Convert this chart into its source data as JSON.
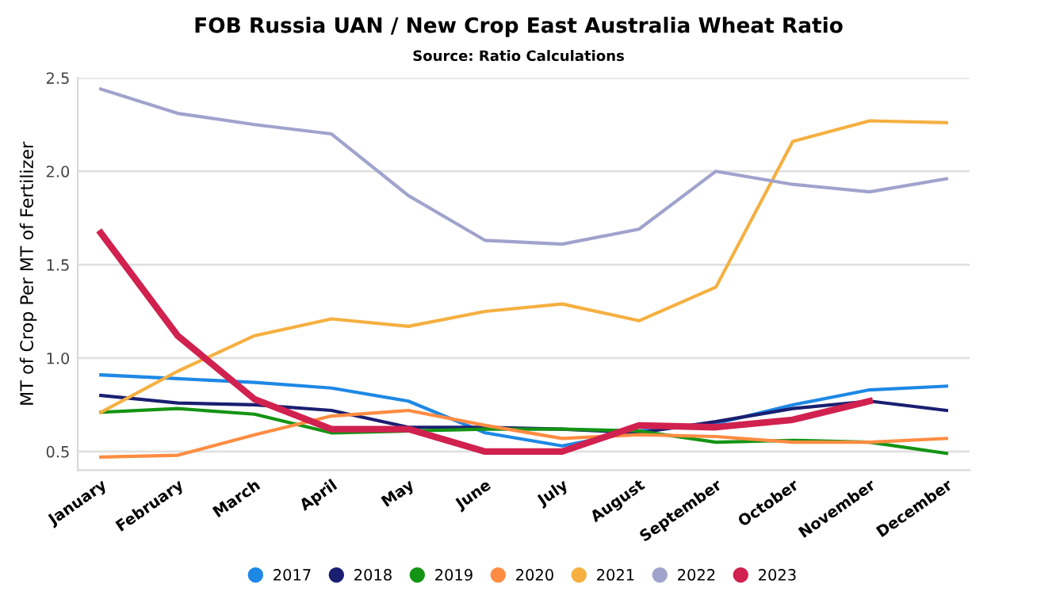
{
  "chart_data": {
    "type": "line",
    "title": "FOB Russia UAN / New Crop East Australia Wheat Ratio",
    "subtitle": "Source: Ratio Calculations",
    "ylabel": "MT of Crop Per MT of Fertilizer",
    "categories": [
      "January",
      "February",
      "March",
      "April",
      "May",
      "June",
      "July",
      "August",
      "September",
      "October",
      "November",
      "December"
    ],
    "series": [
      {
        "name": "2017",
        "color": "#1e88e5",
        "values": [
          0.91,
          0.89,
          0.87,
          0.84,
          0.77,
          0.6,
          0.53,
          0.61,
          0.65,
          0.75,
          0.83,
          0.85
        ]
      },
      {
        "name": "2018",
        "color": "#1a1f71",
        "values": [
          0.8,
          0.76,
          0.75,
          0.72,
          0.63,
          0.63,
          0.62,
          0.6,
          0.66,
          0.73,
          0.77,
          0.72
        ]
      },
      {
        "name": "2019",
        "color": "#149414",
        "values": [
          0.71,
          0.73,
          0.7,
          0.6,
          0.61,
          0.62,
          0.62,
          0.61,
          0.55,
          0.56,
          0.55,
          0.49
        ]
      },
      {
        "name": "2020",
        "color": "#ff8c42",
        "values": [
          0.47,
          0.48,
          0.59,
          0.69,
          0.72,
          0.64,
          0.57,
          0.59,
          0.58,
          0.55,
          0.55,
          0.57
        ]
      },
      {
        "name": "2021",
        "color": "#f5b041",
        "values": [
          0.71,
          0.93,
          1.12,
          1.21,
          1.17,
          1.25,
          1.29,
          1.2,
          1.38,
          2.16,
          2.27,
          2.26
        ]
      },
      {
        "name": "2022",
        "color": "#a0a3cc",
        "values": [
          2.44,
          2.31,
          2.25,
          2.2,
          1.87,
          1.63,
          1.61,
          1.69,
          2.0,
          1.93,
          1.89,
          1.96
        ]
      },
      {
        "name": "2023",
        "color": "#d1214f",
        "values": [
          1.67,
          1.12,
          0.78,
          0.62,
          0.62,
          0.5,
          0.5,
          0.64,
          0.63,
          0.67,
          0.77,
          null
        ]
      }
    ],
    "ylim": [
      0.4,
      2.5
    ],
    "yticks": [
      0.5,
      {
        "value": 1,
        "label": "1.0"
      },
      1.5,
      {
        "value": 2,
        "label": "2.0"
      },
      2.5
    ],
    "grid": "y",
    "legend": "bottom",
    "marker": "none",
    "line_style": "solid"
  }
}
